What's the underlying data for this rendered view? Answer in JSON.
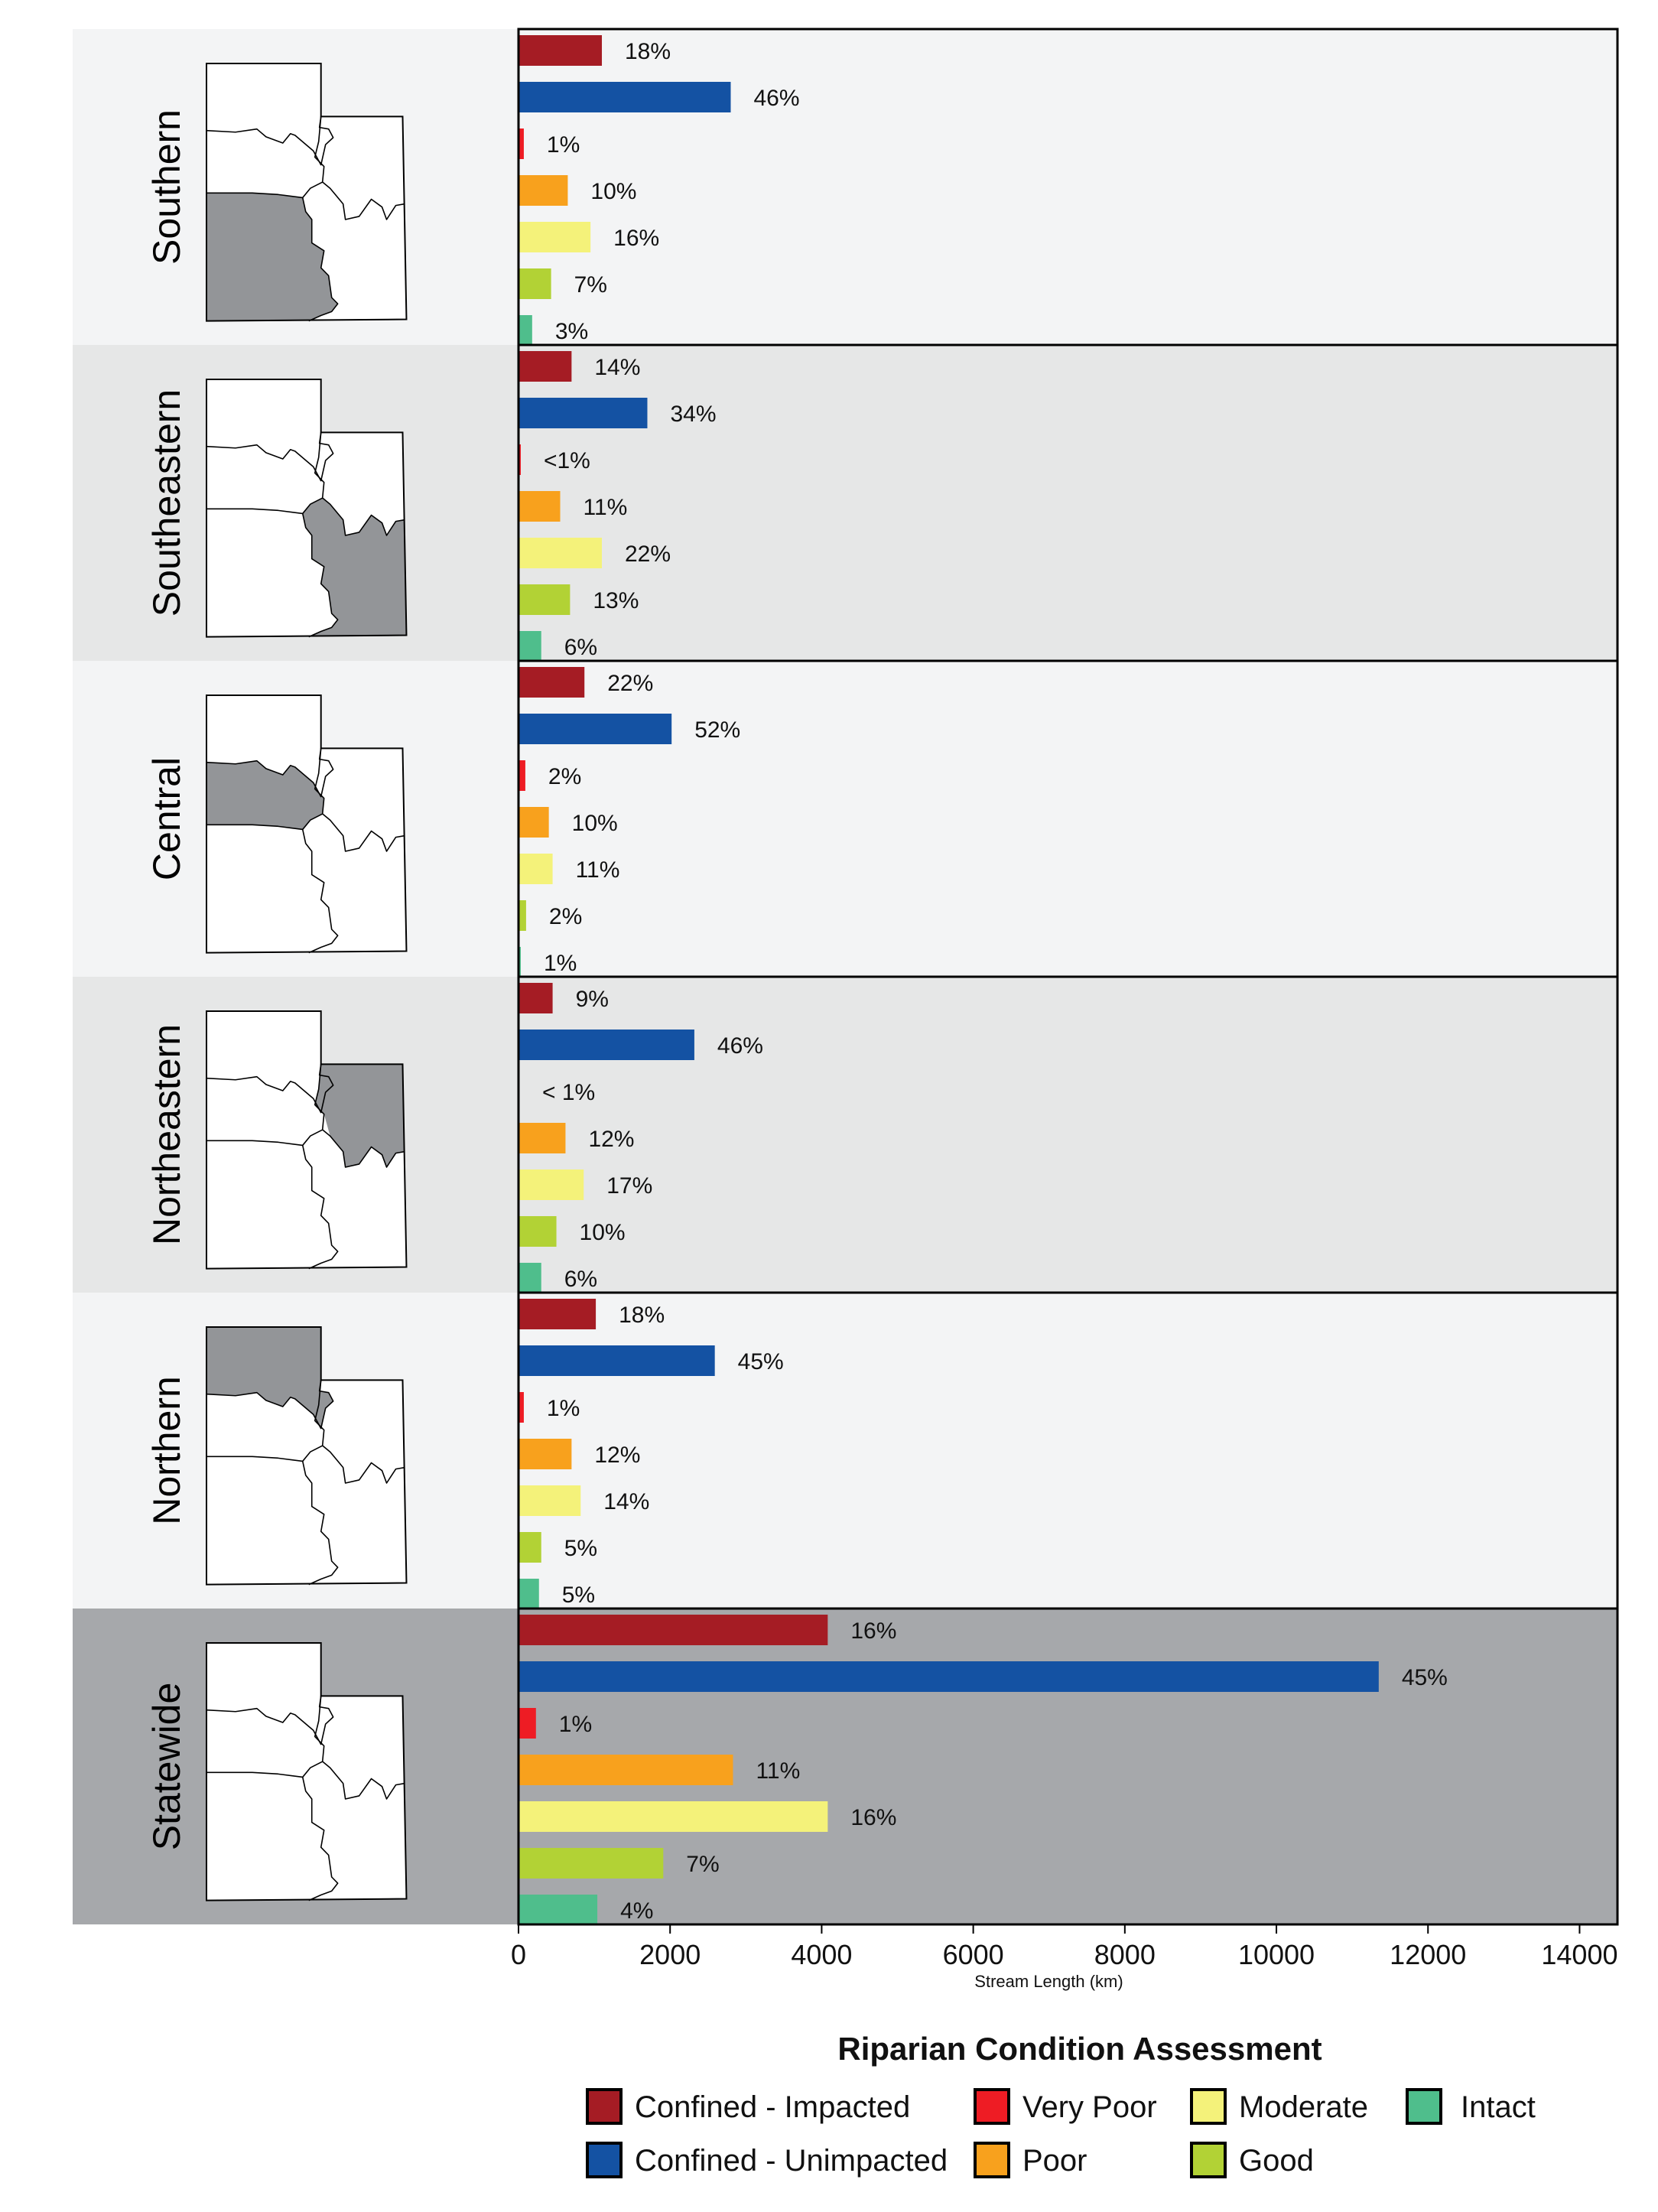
{
  "chart_data": {
    "type": "bar",
    "orientation": "horizontal",
    "xlabel": "Stream Length (km)",
    "xlim": [
      0,
      14500
    ],
    "x_ticks": [
      "0",
      "2000",
      "4000",
      "6000",
      "8000",
      "10000",
      "12000",
      "14000"
    ],
    "x_tick_values": [
      0,
      2000,
      4000,
      6000,
      8000,
      10000,
      12000,
      14000
    ],
    "legend_title": "Riparian Condition Assessment",
    "legend_position": "bottom",
    "series": [
      {
        "name": "Confined - Impacted",
        "color": "#a51c24"
      },
      {
        "name": "Confined - Unimpacted",
        "color": "#1452a3"
      },
      {
        "name": "Very Poor",
        "color": "#ee1c24"
      },
      {
        "name": "Poor",
        "color": "#f8a11d"
      },
      {
        "name": "Moderate",
        "color": "#f4f27a"
      },
      {
        "name": "Good",
        "color": "#b2d235"
      },
      {
        "name": "Intact",
        "color": "#4fbe8c"
      }
    ],
    "panels": [
      {
        "region": "Southern",
        "background": "#f3f4f5",
        "highlight": "southern",
        "values": [
          1100,
          2800,
          70,
          650,
          950,
          430,
          180
        ],
        "labels": [
          "18%",
          "46%",
          "1%",
          "10%",
          "16%",
          "7%",
          "3%"
        ]
      },
      {
        "region": "Southeastern",
        "background": "#e6e7e7",
        "highlight": "southeastern",
        "values": [
          700,
          1700,
          30,
          550,
          1100,
          680,
          300
        ],
        "labels": [
          "14%",
          "34%",
          "<1%",
          "11%",
          "22%",
          "13%",
          "6%"
        ]
      },
      {
        "region": "Central",
        "background": "#f3f4f5",
        "highlight": "central",
        "values": [
          870,
          2020,
          90,
          400,
          450,
          100,
          30
        ],
        "labels": [
          "22%",
          "52%",
          "2%",
          "10%",
          "11%",
          "2%",
          "1%"
        ]
      },
      {
        "region": "Northeastern",
        "background": "#e6e7e7",
        "highlight": "northeastern",
        "values": [
          450,
          2320,
          10,
          620,
          860,
          500,
          300
        ],
        "labels": [
          "9%",
          "46%",
          "< 1%",
          "12%",
          "17%",
          "10%",
          "6%"
        ]
      },
      {
        "region": "Northern",
        "background": "#f3f4f5",
        "highlight": "northern",
        "values": [
          1020,
          2590,
          70,
          700,
          820,
          300,
          270
        ],
        "labels": [
          "18%",
          "45%",
          "1%",
          "12%",
          "14%",
          "5%",
          "5%"
        ]
      },
      {
        "region": "Statewide",
        "background": "#a6a8ab",
        "highlight": "none",
        "values": [
          4080,
          11350,
          230,
          2830,
          4080,
          1910,
          1040
        ],
        "labels": [
          "16%",
          "45%",
          "1%",
          "11%",
          "16%",
          "7%",
          "4%"
        ]
      }
    ]
  }
}
